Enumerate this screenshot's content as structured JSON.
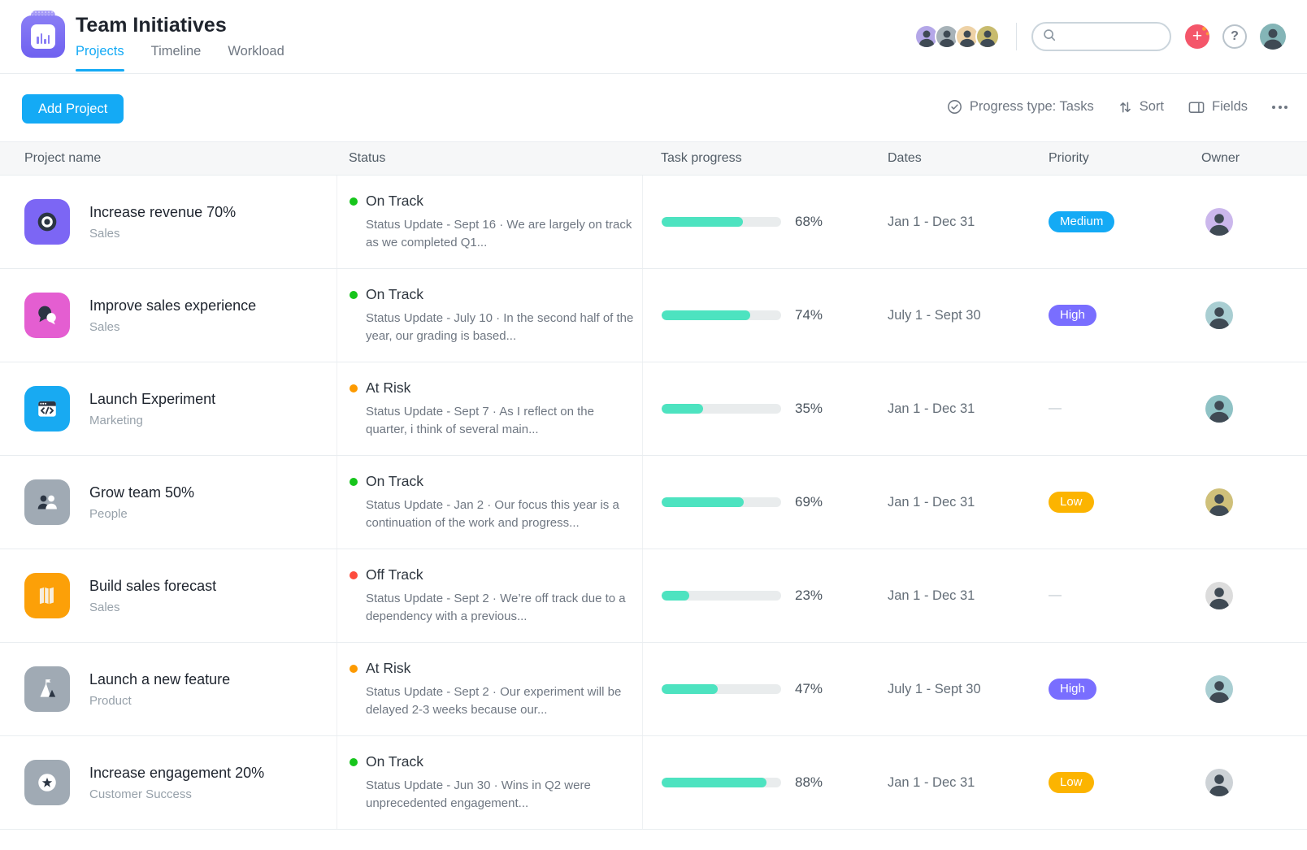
{
  "header": {
    "title": "Team Initiatives",
    "tabs": [
      {
        "label": "Projects",
        "active": true
      },
      {
        "label": "Timeline",
        "active": false
      },
      {
        "label": "Workload",
        "active": false
      }
    ],
    "member_avatars": [
      {
        "bg": "#b4a7e8"
      },
      {
        "bg": "#a7b2b8"
      },
      {
        "bg": "#eed2a6"
      },
      {
        "bg": "#c8bb6e"
      }
    ],
    "search_value": "",
    "plus_label": "+",
    "help_label": "?",
    "profile_avatar_bg": "#84b5b7"
  },
  "toolbar": {
    "add_project_label": "Add Project",
    "progress_type_label": "Progress type: Tasks",
    "sort_label": "Sort",
    "fields_label": "Fields"
  },
  "table": {
    "columns": [
      "Project name",
      "Status",
      "Task progress",
      "Dates",
      "Priority",
      "Owner"
    ],
    "no_priority": "—",
    "rows": [
      {
        "name": "Increase revenue 70%",
        "team": "Sales",
        "icon": "target",
        "icon_bg": "#7c66f4",
        "status": "On Track",
        "status_kind": "on-track",
        "update": "Status Update - Sept 16 · We are largely on track as we completed Q1...",
        "progress": 68,
        "progress_label": "68%",
        "dates": "Jan 1 - Dec 31",
        "priority": "Medium",
        "priority_kind": "medium",
        "avatar_bg": "#cbb7ec"
      },
      {
        "name": "Improve sales experience",
        "team": "Sales",
        "icon": "chat",
        "icon_bg": "#e45ed1",
        "status": "On Track",
        "status_kind": "on-track",
        "update": "Status Update - July 10 · In the second half of the year, our grading is based...",
        "progress": 74,
        "progress_label": "74%",
        "dates": "July 1 - Sept 30",
        "priority": "High",
        "priority_kind": "high",
        "avatar_bg": "#a9ced2"
      },
      {
        "name": "Launch Experiment",
        "team": "Marketing",
        "icon": "code",
        "icon_bg": "#18aaf2",
        "status": "At Risk",
        "status_kind": "at-risk",
        "update": "Status Update - Sept 7 · As I reflect on the quarter, i think of several main...",
        "progress": 35,
        "progress_label": "35%",
        "dates": "Jan 1 - Dec 31",
        "priority": null,
        "priority_kind": null,
        "avatar_bg": "#8fc2c5"
      },
      {
        "name": "Grow team 50%",
        "team": "People",
        "icon": "people",
        "icon_bg": "#a0aab4",
        "status": "On Track",
        "status_kind": "on-track",
        "update": "Status Update - Jan 2 · Our focus this year is a continuation of the work and progress...",
        "progress": 69,
        "progress_label": "69%",
        "dates": "Jan 1 - Dec 31",
        "priority": "Low",
        "priority_kind": "low",
        "avatar_bg": "#cfc07a"
      },
      {
        "name": "Build sales forecast",
        "team": "Sales",
        "icon": "map",
        "icon_bg": "#fca008",
        "status": "Off Track",
        "status_kind": "off-track",
        "update": "Status Update - Sept 2 · We’re off track due to a dependency with a previous...",
        "progress": 23,
        "progress_label": "23%",
        "dates": "Jan 1 - Dec 31",
        "priority": null,
        "priority_kind": null,
        "avatar_bg": "#dcdcdc"
      },
      {
        "name": "Launch a new feature",
        "team": "Product",
        "icon": "mountain",
        "icon_bg": "#a0aab4",
        "status": "At Risk",
        "status_kind": "at-risk",
        "update": "Status Update - Sept 2 · Our experiment will be delayed 2-3 weeks because our...",
        "progress": 47,
        "progress_label": "47%",
        "dates": "July 1 - Sept 30",
        "priority": "High",
        "priority_kind": "high",
        "avatar_bg": "#a9ced2"
      },
      {
        "name": "Increase engagement 20%",
        "team": "Customer Success",
        "icon": "star",
        "icon_bg": "#a0aab4",
        "status": "On Track",
        "status_kind": "on-track",
        "update": "Status Update - Jun 30 · Wins in Q2 were unprecedented engagement...",
        "progress": 88,
        "progress_label": "88%",
        "dates": "Jan 1 - Dec 31",
        "priority": "Low",
        "priority_kind": "low",
        "avatar_bg": "#cdd2d6"
      }
    ]
  },
  "colors": {
    "accent_blue": "#14aaf5",
    "priority": {
      "medium": "#14aaf5",
      "high": "#796eff",
      "low": "#fcb400"
    },
    "status": {
      "on-track": "#16c51b",
      "at-risk": "#fd9a00",
      "off-track": "#fd4b3d"
    },
    "progress_fill": "#4de3c0",
    "progress_track": "#e9eced",
    "plus_button": "#f4566a"
  }
}
